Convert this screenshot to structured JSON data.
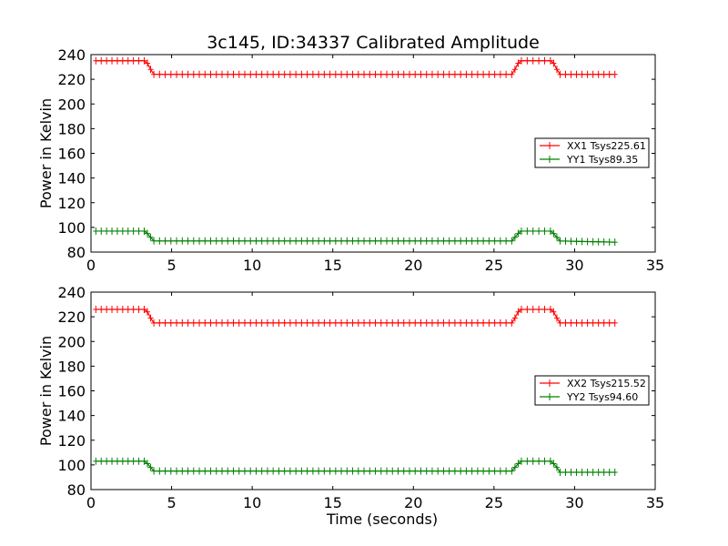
{
  "chart_data": [
    {
      "type": "line",
      "title": "3c145, ID:34337 Calibrated Amplitude",
      "xlabel": "",
      "ylabel": "Power in Kelvin",
      "xlim": [
        0,
        35
      ],
      "ylim": [
        80,
        240
      ],
      "xticks": [
        "0",
        "5",
        "10",
        "15",
        "20",
        "25",
        "30",
        "35"
      ],
      "yticks": [
        "80",
        "100",
        "120",
        "140",
        "160",
        "180",
        "200",
        "220",
        "240"
      ],
      "grid": false,
      "legend_position": "right",
      "marker": "plus",
      "series": [
        {
          "name": "XX1 Tsys225.61",
          "color": "#ff0000",
          "points": [
            [
              0.3,
              235
            ],
            [
              3.3,
              235
            ],
            [
              3.5,
              233
            ],
            [
              3.7,
              228
            ],
            [
              3.9,
              224
            ],
            [
              26.1,
              224
            ],
            [
              26.3,
              228
            ],
            [
              26.5,
              233
            ],
            [
              26.7,
              235
            ],
            [
              28.5,
              235
            ],
            [
              28.7,
              233
            ],
            [
              28.9,
              228
            ],
            [
              29.1,
              224
            ],
            [
              32.5,
              224
            ]
          ]
        },
        {
          "name": "YY1 Tsys89.35",
          "color": "#008000",
          "points": [
            [
              0.3,
              97
            ],
            [
              3.3,
              97
            ],
            [
              3.5,
              95
            ],
            [
              3.7,
              92
            ],
            [
              3.9,
              89
            ],
            [
              26.1,
              89
            ],
            [
              26.3,
              92
            ],
            [
              26.5,
              95
            ],
            [
              26.7,
              97
            ],
            [
              28.5,
              97
            ],
            [
              28.7,
              95
            ],
            [
              28.9,
              92
            ],
            [
              29.1,
              89
            ],
            [
              32.5,
              88
            ]
          ]
        }
      ]
    },
    {
      "type": "line",
      "title": "",
      "xlabel": "Time (seconds)",
      "ylabel": "Power in Kelvin",
      "xlim": [
        0,
        35
      ],
      "ylim": [
        80,
        240
      ],
      "xticks": [
        "0",
        "5",
        "10",
        "15",
        "20",
        "25",
        "30",
        "35"
      ],
      "yticks": [
        "80",
        "100",
        "120",
        "140",
        "160",
        "180",
        "200",
        "220",
        "240"
      ],
      "grid": false,
      "legend_position": "right",
      "marker": "plus",
      "series": [
        {
          "name": "XX2 Tsys215.52",
          "color": "#ff0000",
          "points": [
            [
              0.3,
              226
            ],
            [
              3.3,
              226
            ],
            [
              3.5,
              224
            ],
            [
              3.7,
              219
            ],
            [
              3.9,
              215
            ],
            [
              26.1,
              215
            ],
            [
              26.3,
              219
            ],
            [
              26.5,
              224
            ],
            [
              26.7,
              226
            ],
            [
              28.5,
              226
            ],
            [
              28.7,
              224
            ],
            [
              28.9,
              219
            ],
            [
              29.1,
              215
            ],
            [
              32.5,
              215
            ]
          ]
        },
        {
          "name": "YY2 Tsys94.60",
          "color": "#008000",
          "points": [
            [
              0.3,
              103
            ],
            [
              3.3,
              103
            ],
            [
              3.5,
              101
            ],
            [
              3.7,
              98
            ],
            [
              3.9,
              95
            ],
            [
              26.1,
              95
            ],
            [
              26.3,
              98
            ],
            [
              26.5,
              101
            ],
            [
              26.7,
              103
            ],
            [
              28.5,
              103
            ],
            [
              28.7,
              101
            ],
            [
              28.9,
              98
            ],
            [
              29.1,
              94
            ],
            [
              32.5,
              94
            ]
          ]
        }
      ]
    }
  ]
}
